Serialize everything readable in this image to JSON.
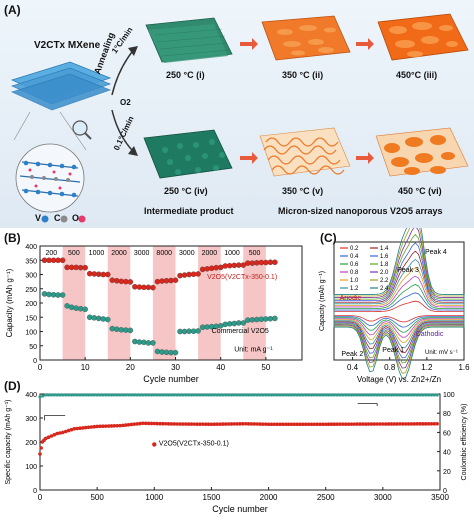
{
  "panel_a": {
    "label": "(A)",
    "material": "V2CTx MXene",
    "process_label": "Annealing",
    "rate_fast": "1°C/min",
    "rate_slow": "0.1°C/min",
    "atmosphere": "O2",
    "row1": [
      "250 °C (i)",
      "350 °C (ii)",
      "450°C (iii)"
    ],
    "row2": [
      "250 °C (iv)",
      "350 °C (v)",
      "450 °C (vi)"
    ],
    "caption_left": "Intermediate product",
    "caption_right": "Micron-sized nanoporous V2O5 arrays",
    "legend": [
      "V",
      "C",
      "O"
    ],
    "colors": {
      "mxene": "#4aa0d8",
      "green": "#2f8a6e",
      "orange": "#f07020",
      "arrow": "#e85a3c"
    }
  },
  "chart_data": [
    {
      "panel": "(B)",
      "type": "scatter",
      "xlabel": "Cycle number",
      "ylabel": "Capacity (mAh g⁻¹)",
      "xlim": [
        0,
        58
      ],
      "ylim": [
        0,
        400
      ],
      "xticks": [
        0,
        10,
        20,
        30,
        40,
        50
      ],
      "yticks": [
        0,
        50,
        100,
        150,
        200,
        250,
        300,
        350,
        400
      ],
      "rate_labels": [
        "200",
        "500",
        "1000",
        "2000",
        "3000",
        "8000",
        "3000",
        "2000",
        "1000",
        "500"
      ],
      "unit_note": "Unit: mA g⁻¹",
      "shaded": [
        [
          5,
          10
        ],
        [
          15,
          20
        ],
        [
          25,
          30
        ],
        [
          35,
          40
        ],
        [
          45,
          50
        ]
      ],
      "series": [
        {
          "name": "V2O5(V2CTx-350-0.1)",
          "color": "#d8281e",
          "values": [
            350,
            350,
            350,
            350,
            350,
            325,
            325,
            325,
            324,
            324,
            303,
            302,
            301,
            300,
            300,
            280,
            278,
            276,
            275,
            274,
            257,
            256,
            255,
            255,
            254,
            275,
            277,
            278,
            279,
            280,
            296,
            298,
            300,
            301,
            302,
            318,
            320,
            322,
            324,
            325,
            330,
            331,
            332,
            333,
            333,
            340,
            340,
            341,
            342,
            342,
            343,
            343
          ]
        },
        {
          "name": "Commercial V2O5",
          "color": "#2f9a8a",
          "values": [
            232,
            230,
            229,
            228,
            228,
            190,
            185,
            182,
            180,
            178,
            150,
            148,
            146,
            144,
            142,
            110,
            108,
            106,
            105,
            104,
            65,
            63,
            62,
            60,
            60,
            30,
            28,
            27,
            26,
            26,
            100,
            100,
            101,
            101,
            102,
            115,
            116,
            117,
            118,
            120,
            125,
            127,
            128,
            130,
            130,
            140,
            141,
            142,
            143,
            144,
            145,
            146
          ]
        }
      ]
    },
    {
      "panel": "(C)",
      "type": "line",
      "xlabel": "Voltage (V) vs. Zn2+/Zn",
      "ylabel": "Capacity (mAh g⁻¹)",
      "xlim": [
        0.2,
        1.6
      ],
      "xticks": [
        0.4,
        0.8,
        1.2,
        1.6
      ],
      "scan_rates": [
        0.2,
        0.4,
        0.6,
        0.8,
        1.0,
        1.2,
        1.4,
        1.6,
        1.8,
        2.0,
        2.2,
        2.4
      ],
      "unit_note": "Unit: mV s⁻¹",
      "annotations": [
        "Peak 1",
        "Peak 2",
        "Peak 3",
        "Peak 4",
        "Anodic",
        "Cathodic"
      ]
    },
    {
      "panel": "(D)",
      "type": "scatter",
      "xlabel": "Cycle number",
      "ylabel": "Specific capacity (mAh g⁻¹)",
      "y2label": "Coulombic efficiency (%)",
      "xlim": [
        0,
        3500
      ],
      "ylim": [
        0,
        400
      ],
      "y2lim": [
        0,
        100
      ],
      "xticks": [
        0,
        500,
        1000,
        1500,
        2000,
        2500,
        3000,
        3500
      ],
      "yticks": [
        0,
        100,
        200,
        300,
        400
      ],
      "y2ticks": [
        0,
        20,
        40,
        60,
        80,
        100
      ],
      "series": [
        {
          "name": "V2O5(V2CTx-350-0.1)",
          "color": "#d8281e",
          "axis": "left",
          "x": [
            0,
            20,
            50,
            100,
            150,
            200,
            300,
            400,
            500,
            700,
            900,
            1200,
            1500,
            1800,
            2000,
            2500,
            3000,
            3500
          ],
          "values": [
            150,
            200,
            215,
            225,
            235,
            240,
            255,
            260,
            265,
            268,
            278,
            275,
            274,
            276,
            274,
            274,
            275,
            276
          ]
        },
        {
          "name": "Coulombic efficiency",
          "color": "#2f9a8a",
          "axis": "right",
          "x": [
            0,
            50,
            100,
            500,
            1000,
            1500,
            2000,
            2500,
            3000,
            3500
          ],
          "values": [
            97,
            99,
            99,
            99,
            99,
            99,
            99,
            99,
            99,
            99
          ]
        }
      ]
    }
  ]
}
